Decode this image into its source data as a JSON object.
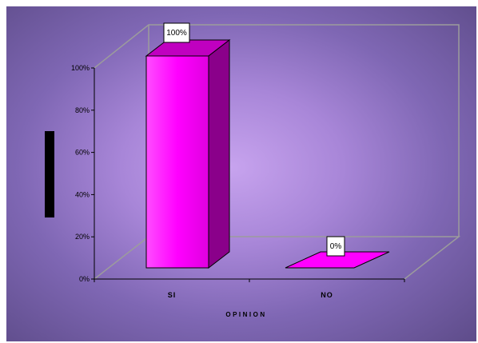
{
  "chart_data": {
    "type": "bar",
    "categories": [
      "SI",
      "NO"
    ],
    "values": [
      100,
      0
    ],
    "data_labels": [
      "100%",
      "0%"
    ],
    "xlabel": "OPINION",
    "ylabel": "",
    "ylim": [
      0,
      100
    ],
    "y_ticks": [
      "0%",
      "20%",
      "40%",
      "60%",
      "80%",
      "100%"
    ],
    "three_d": true,
    "grid": false,
    "legend": "none"
  },
  "colors": {
    "bar_front": "#ff00ff",
    "bar_side": "#8a008a",
    "bar_top": "#c000c0",
    "frame_lines": "#9c9c9c"
  }
}
